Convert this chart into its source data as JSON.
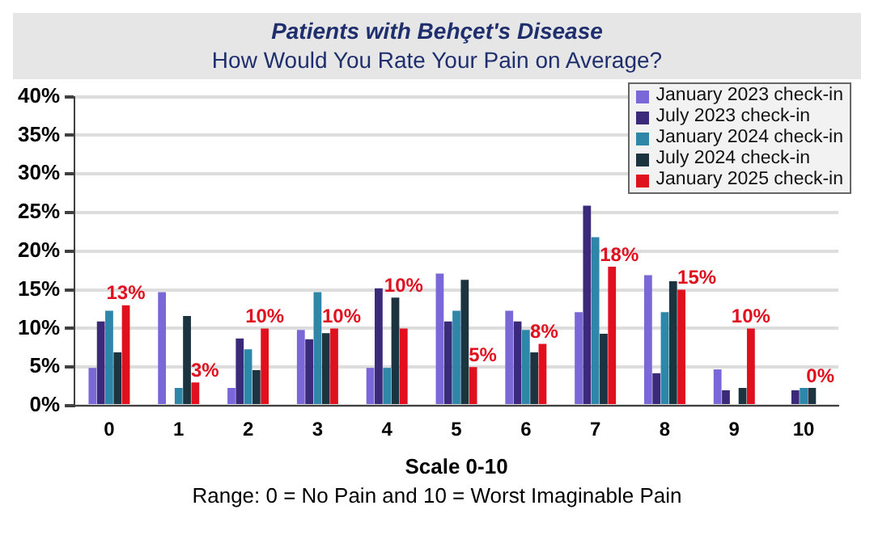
{
  "chart_data": {
    "type": "bar",
    "title": "Patients with Behçet's Disease",
    "subtitle": "How Would You Rate Your Pain on Average?",
    "xlabel": "Scale 0-10",
    "annotations": [
      "Range: 0 = No Pain and 10 = Worst Imaginable Pain"
    ],
    "categories": [
      "0",
      "1",
      "2",
      "3",
      "4",
      "5",
      "6",
      "7",
      "8",
      "9",
      "10"
    ],
    "series": [
      {
        "name": "January 2023 check-in",
        "color": "#7b68d8",
        "values": [
          4.9,
          14.7,
          2.3,
          9.8,
          4.9,
          17.1,
          12.3,
          12.1,
          16.9,
          4.7,
          0
        ]
      },
      {
        "name": "July 2023 check-in",
        "color": "#3b2a7a",
        "values": [
          10.9,
          0,
          8.7,
          8.6,
          15.2,
          10.9,
          10.9,
          25.9,
          4.2,
          2,
          2
        ]
      },
      {
        "name": "January 2024 check-in",
        "color": "#2e86a8",
        "values": [
          12.3,
          2.3,
          7.3,
          14.7,
          4.9,
          12.3,
          9.8,
          21.8,
          12.1,
          0,
          2.3
        ]
      },
      {
        "name": "July 2024 check-in",
        "color": "#1c3440",
        "values": [
          6.9,
          11.6,
          4.6,
          9.4,
          14,
          16.3,
          6.9,
          9.3,
          16.1,
          2.3,
          2.3
        ]
      },
      {
        "name": "January 2025 check-in",
        "color": "#e0101e",
        "values": [
          13,
          3,
          10,
          10,
          10,
          5,
          8,
          18,
          15,
          10,
          0
        ],
        "value_labels": [
          "13%",
          "3%",
          "10%",
          "10%",
          "10%",
          "5%",
          "8%",
          "18%",
          "15%",
          "10%",
          "0%"
        ]
      }
    ],
    "ylim": [
      0,
      40
    ],
    "yticks": [
      {
        "value": 0,
        "label": "0%"
      },
      {
        "value": 5,
        "label": "5%"
      },
      {
        "value": 10,
        "label": "10%"
      },
      {
        "value": 15,
        "label": "15%"
      },
      {
        "value": 20,
        "label": "20%"
      },
      {
        "value": 25,
        "label": "25%"
      },
      {
        "value": 30,
        "label": "30%"
      },
      {
        "value": 35,
        "label": "35%"
      },
      {
        "value": 40,
        "label": "40%"
      }
    ],
    "grid": "y",
    "legend": "top right"
  }
}
